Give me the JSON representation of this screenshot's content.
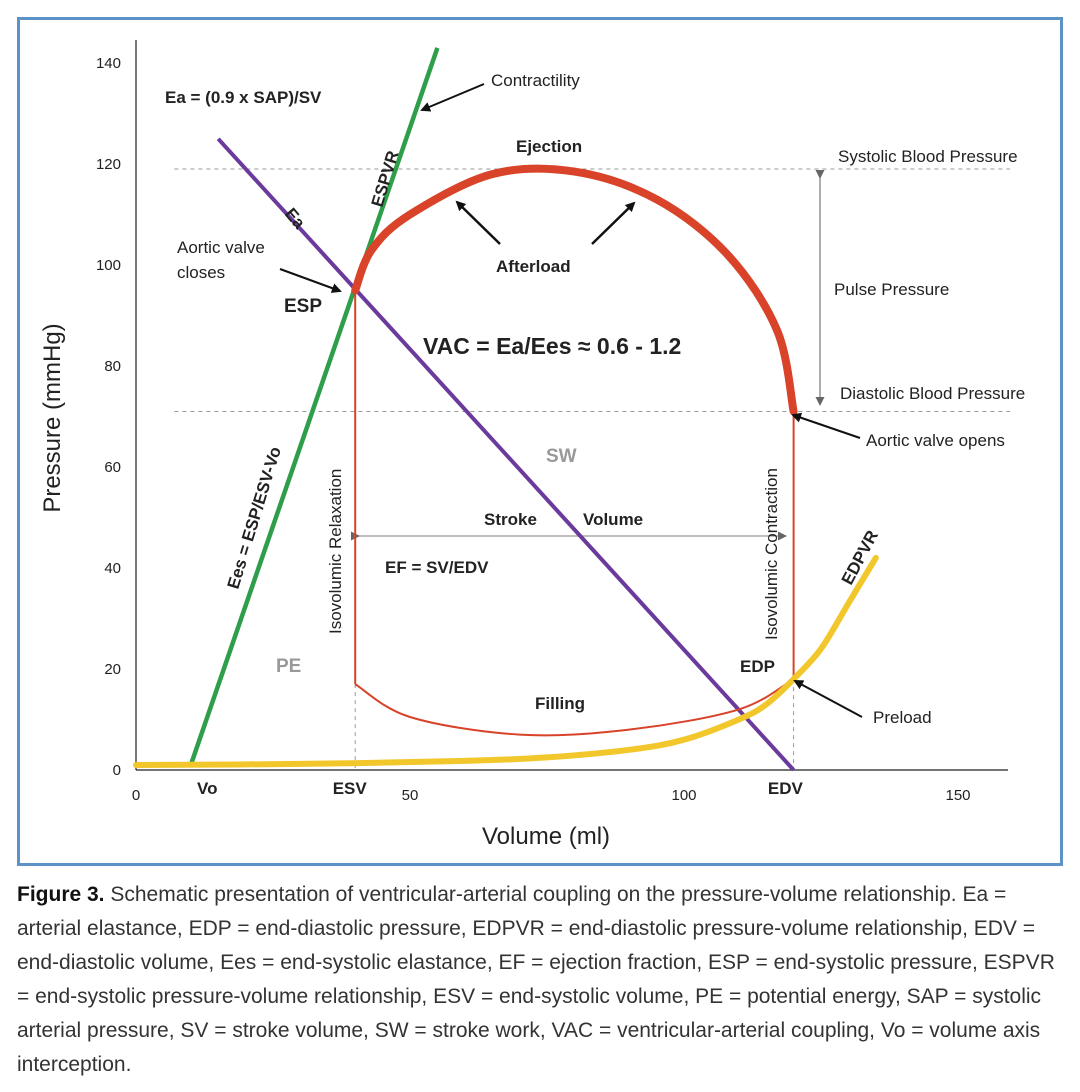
{
  "chart_data": {
    "type": "line",
    "xlabel": "Volume (ml)",
    "ylabel": "Pressure (mmHg)",
    "xlim": [
      0,
      160
    ],
    "ylim": [
      0,
      145
    ],
    "x_ticks": [
      "0",
      "50",
      "100",
      "150"
    ],
    "y_ticks": [
      "0",
      "20",
      "40",
      "60",
      "80",
      "100",
      "120",
      "140"
    ],
    "x_special_labels": {
      "vo": "Vo",
      "esv": "ESV",
      "edv": "EDV"
    },
    "points": {
      "vo": [
        10,
        1
      ],
      "esp": [
        40,
        95
      ],
      "edp": [
        120,
        18
      ],
      "edv": [
        120,
        0
      ],
      "esv": [
        40,
        0
      ]
    },
    "series": [
      {
        "name": "ESPVR",
        "color": "#2e9e4a",
        "x": [
          10,
          55
        ],
        "y": [
          1,
          143
        ]
      },
      {
        "name": "Ea",
        "color": "#6a3a9c",
        "x": [
          15,
          120
        ],
        "y": [
          125,
          0
        ]
      },
      {
        "name": "EDPVR",
        "color": "#f2c72c",
        "x": [
          0,
          30,
          60,
          75,
          90,
          100,
          110,
          115,
          120,
          125,
          130,
          135
        ],
        "y": [
          1,
          1.2,
          1.8,
          2.5,
          4,
          6,
          10,
          13,
          18,
          24,
          33,
          42
        ]
      },
      {
        "name": "",
        "color": "#d8432a",
        "x": [
          40,
          40,
          60,
          80,
          100,
          110,
          120,
          120,
          117,
          108,
          95,
          80,
          65,
          50,
          43,
          40
        ],
        "y": [
          17,
          95,
          115,
          119,
          117,
          110,
          90,
          71,
          87,
          102,
          113,
          118.5,
          118,
          110,
          103,
          95
        ]
      }
    ],
    "dashed_levels": {
      "systolic": 119,
      "diastolic": 71
    },
    "labels": {
      "equation_ea": "Ea = (0.9 x SAP)/SV",
      "contractility": "Contractility",
      "espvr": "ESPVR",
      "ea": "Ea",
      "ejection": "Ejection",
      "systolic_bp": "Systolic Blood Pressure",
      "afterload": "Afterload",
      "aortic_valve_closes_1": "Aortic valve",
      "aortic_valve_closes_2": "closes",
      "esp": "ESP",
      "pulse_pressure": "Pulse Pressure",
      "vac": "VAC = Ea/Ees ≈ 0.6 - 1.2",
      "diastolic_bp": "Diastolic Blood Pressure",
      "aortic_valve_opens": "Aortic valve opens",
      "sw": "SW",
      "ees": "Ees = ESP/ESV-Vo",
      "isovolumic_relaxation": "Isovolumic Relaxation",
      "isovolumic_contraction": "Isovolumic Contraction",
      "stroke": "Stroke",
      "volume": "Volume",
      "ef": "EF = SV/EDV",
      "edpvr": "EDPVR",
      "pe": "PE",
      "edp": "EDP",
      "filling": "Filling",
      "preload": "Preload"
    }
  },
  "caption": {
    "label": "Figure 3.",
    "text": "Schematic presentation of ventricular-arterial coupling on the pressure-volume relationship. Ea = arterial elastance, EDP = end-diastolic pressure, EDPVR = end-diastolic pressure-volume relationship, EDV = end-diastolic volume, Ees = end-systolic elastance, EF = ejection fraction, ESP = end-systolic pressure, ESPVR = end-systolic pressure-volume relationship, ESV = end-systolic volume, PE = potential energy, SAP = systolic arterial pressure, SV = stroke volume, SW = stroke work, VAC = ventricular-arterial coupling, Vo = volume axis interception."
  },
  "colors": {
    "frame": "#5b93c7",
    "espvr": "#2e9e4a",
    "ea": "#6a3a9c",
    "edpvr": "#f2c72c",
    "loop": "#d8432a"
  }
}
